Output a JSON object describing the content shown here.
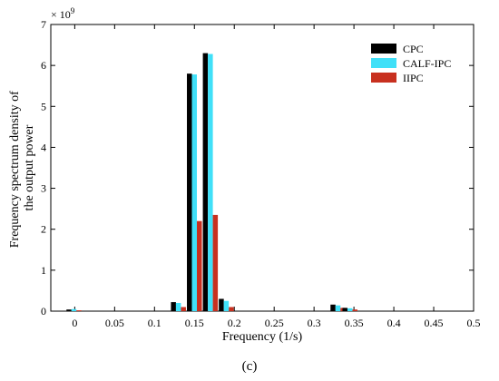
{
  "chart_data": {
    "type": "bar",
    "title": "",
    "xlabel": "Frequency (1/s)",
    "ylabel_lines": [
      "Frequency spectrum density of",
      "the output power"
    ],
    "y_exponent_prefix": "× 10",
    "y_exponent": "9",
    "xlim": [
      -0.03,
      0.5
    ],
    "ylim": [
      0,
      7
    ],
    "x_ticks": [
      0,
      0.05,
      0.1,
      0.15,
      0.2,
      0.25,
      0.3,
      0.35,
      0.4,
      0.45,
      0.5
    ],
    "x_tick_labels": [
      "0",
      "0.05",
      "0.1",
      "0.15",
      "0.2",
      "0.25",
      "0.3",
      "0.35",
      "0.4",
      "0.45",
      "0.5"
    ],
    "y_ticks": [
      0,
      1,
      2,
      3,
      4,
      5,
      6,
      7
    ],
    "y_tick_labels": [
      "0",
      "1",
      "2",
      "3",
      "4",
      "5",
      "6",
      "7"
    ],
    "grid": false,
    "legend_position": "top-right",
    "x": [
      -0.001,
      0.13,
      0.15,
      0.17,
      0.19,
      0.33,
      0.345
    ],
    "series": [
      {
        "name": "CPC",
        "color": "#000000",
        "values": [
          0.04,
          0.22,
          5.8,
          6.3,
          0.3,
          0.16,
          0.08
        ]
      },
      {
        "name": "CALF-IPC",
        "color": "#40e0f8",
        "values": [
          0.05,
          0.2,
          5.78,
          6.28,
          0.25,
          0.14,
          0.07
        ]
      },
      {
        "name": "IIPC",
        "color": "#c8301f",
        "values": [
          0.02,
          0.1,
          2.2,
          2.35,
          0.1,
          0.08,
          0.04
        ]
      }
    ]
  },
  "caption": "(c)"
}
